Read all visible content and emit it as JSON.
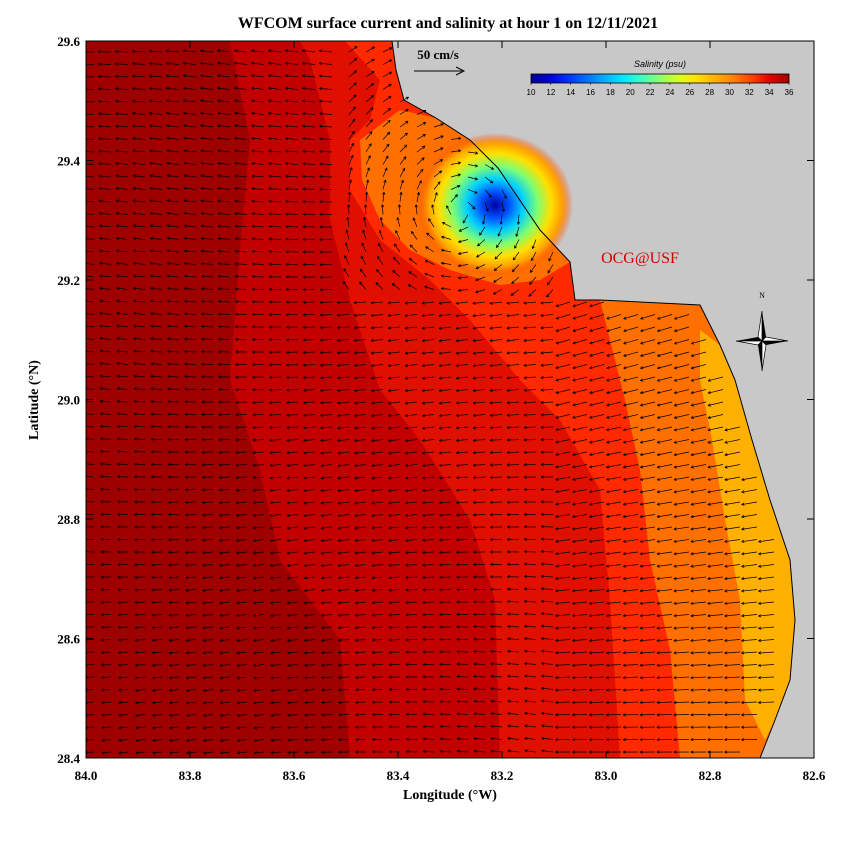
{
  "figure": {
    "title": "WFCOM surface current and salinity at hour 1 on 12/11/2021",
    "xlabel": "Longitude (°W)",
    "ylabel": "Latitude (°N)",
    "credit": "OCG@USF",
    "compass_label": "N",
    "scale_arrow_label": "50 cm/s"
  },
  "colorbar": {
    "title": "Salinity (psu)",
    "min": 10,
    "max": 36,
    "ticks": [
      "10",
      "12",
      "14",
      "16",
      "18",
      "20",
      "22",
      "24",
      "26",
      "28",
      "30",
      "32",
      "34",
      "36"
    ],
    "colors": [
      "#00008f",
      "#0000d8",
      "#0030ff",
      "#0070ff",
      "#00b0ff",
      "#00e8ff",
      "#40ffc0",
      "#90ff70",
      "#d8ff20",
      "#ffe000",
      "#ffb000",
      "#ff8000",
      "#ff4000",
      "#e00000",
      "#a00000"
    ]
  },
  "axes": {
    "x_ticks": [
      "84.0",
      "83.8",
      "83.6",
      "83.4",
      "83.2",
      "83.0",
      "82.8",
      "82.6"
    ],
    "y_ticks": [
      "29.6",
      "29.4",
      "29.2",
      "29.0",
      "28.8",
      "28.6",
      "28.4"
    ]
  },
  "colors": {
    "land": "#c8c8c8",
    "water_deep": "#9e0000",
    "water_mid": "#c20000",
    "water_shelf": "#e01000",
    "water_near": "#ff2a00",
    "water_coastal": "#ff7000",
    "water_plume": "#ffb000",
    "arrow": "#000000"
  },
  "chart_data": {
    "type": "heatmap",
    "title": "WFCOM surface current and salinity at hour 1 on 12/11/2021",
    "xlabel": "Longitude (°W)",
    "ylabel": "Latitude (°N)",
    "xlim": [
      84.0,
      82.6
    ],
    "ylim": [
      28.4,
      29.6
    ],
    "colorbar_range": [
      10,
      36
    ],
    "salinity_zones": [
      {
        "region": "offshore west",
        "salinity_approx": 35.5
      },
      {
        "region": "mid shelf",
        "salinity_approx": 34.5
      },
      {
        "region": "inner shelf",
        "salinity_approx": 33
      },
      {
        "region": "nearshore south",
        "salinity_approx": 29
      },
      {
        "region": "river plume core near 83.2W 29.32N",
        "salinity_approx": 10
      }
    ],
    "current_scale_cm_s": 50
  }
}
